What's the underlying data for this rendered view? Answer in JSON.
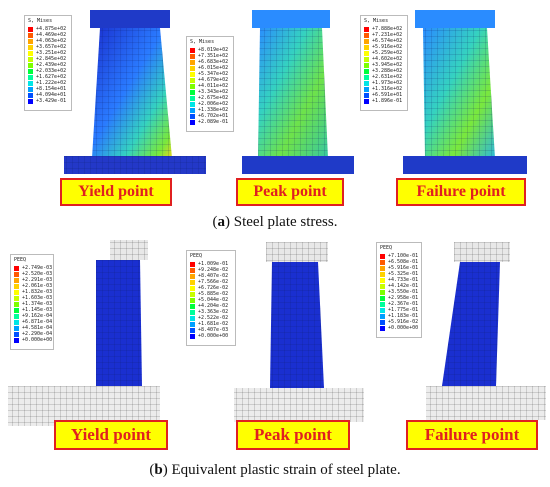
{
  "top": {
    "legend_title": "S, Mises",
    "panels": [
      {
        "legend": [
          "+4.875e+02",
          "+4.469e+02",
          "+4.063e+02",
          "+3.657e+02",
          "+3.251e+02",
          "+2.845e+02",
          "+2.439e+02",
          "+2.033e+02",
          "+1.627e+02",
          "+1.222e+02",
          "+8.154e+01",
          "+4.094e+01",
          "+3.429e-01"
        ],
        "label": "Yield point"
      },
      {
        "legend": [
          "+8.019e+02",
          "+7.351e+02",
          "+6.683e+02",
          "+6.015e+02",
          "+5.347e+02",
          "+4.679e+02",
          "+4.011e+02",
          "+3.343e+02",
          "+2.675e+02",
          "+2.006e+02",
          "+1.338e+02",
          "+6.702e+01",
          "+2.089e-01"
        ],
        "label": "Peak point"
      },
      {
        "legend": [
          "+7.888e+02",
          "+7.231e+02",
          "+6.574e+02",
          "+5.916e+02",
          "+5.259e+02",
          "+4.602e+02",
          "+3.945e+02",
          "+3.288e+02",
          "+2.631e+02",
          "+1.973e+02",
          "+1.316e+02",
          "+6.591e+01",
          "+1.896e-01"
        ],
        "label": "Failure point"
      }
    ],
    "caption_letter": "a",
    "caption_text": " Steel plate stress."
  },
  "bottom": {
    "legend_title": "PEEQ",
    "panels": [
      {
        "legend": [
          "+2.749e-03",
          "+2.520e-03",
          "+2.291e-03",
          "+2.061e-03",
          "+1.832e-03",
          "+1.603e-03",
          "+1.374e-03",
          "+1.145e-03",
          "+9.162e-04",
          "+6.871e-04",
          "+4.581e-04",
          "+2.290e-04",
          "+0.000e+00"
        ],
        "label": "Yield point"
      },
      {
        "legend": [
          "+1.009e-01",
          "+9.248e-02",
          "+8.407e-02",
          "+7.566e-02",
          "+6.726e-02",
          "+5.885e-02",
          "+5.044e-02",
          "+4.204e-02",
          "+3.363e-02",
          "+2.522e-02",
          "+1.681e-02",
          "+8.407e-03",
          "+0.000e+00"
        ],
        "label": "Peak point"
      },
      {
        "legend": [
          "+7.100e-01",
          "+6.508e-01",
          "+5.916e-01",
          "+5.325e-01",
          "+4.733e-01",
          "+4.142e-01",
          "+3.550e-01",
          "+2.958e-01",
          "+2.367e-01",
          "+1.775e-01",
          "+1.183e-01",
          "+5.916e-02",
          "+0.000e+00"
        ],
        "label": "Failure point"
      }
    ],
    "caption_letter": "b",
    "caption_text": " Equivalent plastic strain of steel plate."
  },
  "colors": {
    "contour": [
      "#ff0000",
      "#ff5a00",
      "#ffa500",
      "#ffd200",
      "#ffff00",
      "#c8ff00",
      "#7cff00",
      "#00ff3c",
      "#00ff9b",
      "#00e6e6",
      "#00a0ff",
      "#0050ff",
      "#0000ff"
    ],
    "label_bg": "#ffff00",
    "label_text": "#e02020",
    "mesh_blue": "#1a2fd0",
    "mesh_grey": "#e8e8e8"
  }
}
